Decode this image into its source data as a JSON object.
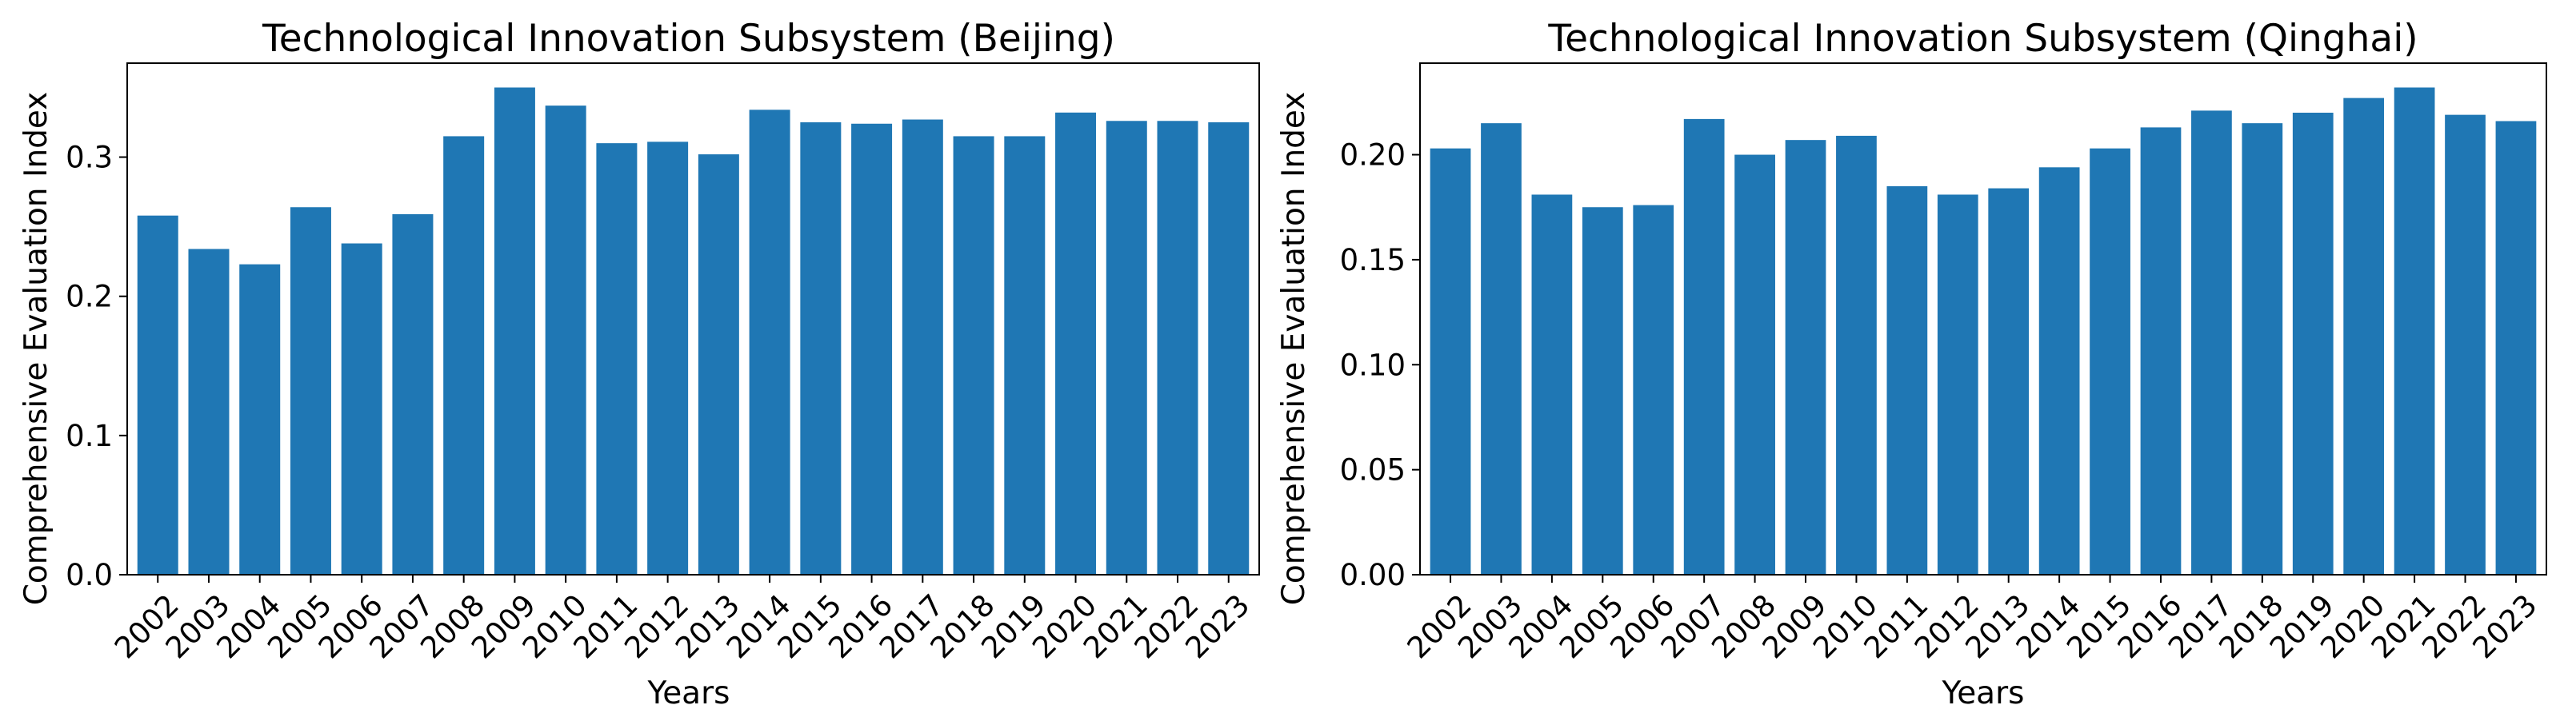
{
  "bar_color": "#1f77b4",
  "chart_data": [
    {
      "type": "bar",
      "title": "Technological Innovation Subsystem (Beijing)",
      "xlabel": "Years",
      "ylabel": "Comprehensive Evaluation Index",
      "categories": [
        "2002",
        "2003",
        "2004",
        "2005",
        "2006",
        "2007",
        "2008",
        "2009",
        "2010",
        "2011",
        "2012",
        "2013",
        "2014",
        "2015",
        "2016",
        "2017",
        "2018",
        "2019",
        "2020",
        "2021",
        "2022",
        "2023"
      ],
      "values": [
        0.258,
        0.234,
        0.223,
        0.264,
        0.238,
        0.259,
        0.315,
        0.35,
        0.337,
        0.31,
        0.311,
        0.302,
        0.334,
        0.325,
        0.324,
        0.327,
        0.315,
        0.315,
        0.332,
        0.326,
        0.326,
        0.325
      ],
      "yticks": [
        "0.0",
        "0.1",
        "0.2",
        "0.3"
      ],
      "ylim": [
        0,
        0.3675
      ],
      "grid": false,
      "legend": false
    },
    {
      "type": "bar",
      "title": "Technological Innovation Subsystem (Qinghai)",
      "xlabel": "Years",
      "ylabel": "Comprehensive Evaluation Index",
      "categories": [
        "2002",
        "2003",
        "2004",
        "2005",
        "2006",
        "2007",
        "2008",
        "2009",
        "2010",
        "2011",
        "2012",
        "2013",
        "2014",
        "2015",
        "2016",
        "2017",
        "2018",
        "2019",
        "2020",
        "2021",
        "2022",
        "2023"
      ],
      "values": [
        0.203,
        0.215,
        0.181,
        0.175,
        0.176,
        0.217,
        0.2,
        0.207,
        0.209,
        0.185,
        0.181,
        0.184,
        0.194,
        0.203,
        0.213,
        0.221,
        0.215,
        0.22,
        0.227,
        0.232,
        0.219,
        0.216
      ],
      "yticks": [
        "0.00",
        "0.05",
        "0.10",
        "0.15",
        "0.20"
      ],
      "ylim": [
        0,
        0.2436
      ],
      "grid": false,
      "legend": false
    }
  ]
}
